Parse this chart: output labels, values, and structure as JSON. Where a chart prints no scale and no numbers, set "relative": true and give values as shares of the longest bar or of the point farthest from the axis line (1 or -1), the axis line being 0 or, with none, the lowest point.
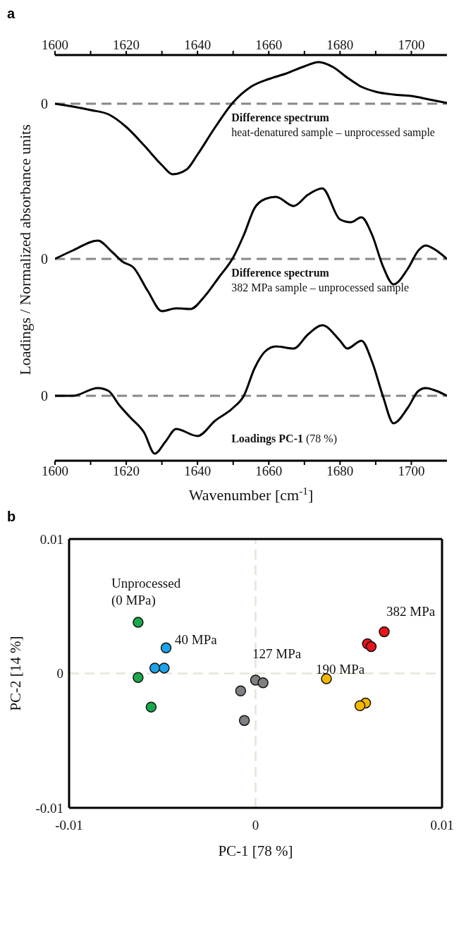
{
  "chart_data": [
    {
      "type": "line",
      "title": "a",
      "relative": true,
      "xlim": [
        1600,
        1710
      ],
      "xticks": [
        1600,
        {
          "value": 1610,
          "label": null
        },
        1620,
        {
          "value": 1630,
          "label": null
        },
        1640,
        {
          "value": 1650,
          "label": null
        },
        1660,
        {
          "value": 1670,
          "label": null
        },
        1680,
        {
          "value": 1690,
          "label": null
        },
        1700
      ],
      "x": [
        1600,
        1605,
        1610,
        1615,
        1620,
        1625,
        1630,
        1633,
        1637,
        1640,
        1645,
        1650,
        1655,
        1660,
        1665,
        1670,
        1674,
        1678,
        1682,
        1686,
        1690,
        1695,
        1700,
        1705,
        1710
      ],
      "series": [
        {
          "color": "#000000",
          "values": [
            0,
            -0.04,
            -0.09,
            -0.15,
            -0.33,
            -0.59,
            -0.87,
            -1,
            -0.93,
            -0.72,
            -0.33,
            0.02,
            0.24,
            0.35,
            0.43,
            0.53,
            0.59,
            0.52,
            0.37,
            0.24,
            0.17,
            0.13,
            0.11,
            0.06,
            0.01
          ]
        }
      ],
      "ref_lines": [
        {
          "axis": "y",
          "value": 0,
          "label": "0",
          "color": "#888888",
          "line_style": "dashed"
        }
      ],
      "annotations": [
        "Difference spectrum",
        "heat-denatured sample – unprocessed sample"
      ],
      "marker": "none",
      "line_style": "solid",
      "grid": false,
      "legend": false
    },
    {
      "type": "line",
      "relative": true,
      "ylabel": "Loadings / Normalized absorbance units",
      "xlim": [
        1600,
        1710
      ],
      "tick_labels": false,
      "x": [
        1600,
        1605,
        1612,
        1616,
        1619,
        1622,
        1626,
        1630,
        1634,
        1638,
        1642,
        1646,
        1650,
        1653,
        1656,
        1659,
        1662,
        1667,
        1671,
        1675,
        1680,
        1683,
        1686,
        1689,
        1692,
        1695,
        1699,
        1702,
        1704,
        1707,
        1710
      ],
      "series": [
        {
          "color": "#000000",
          "values": [
            0,
            0.12,
            0.26,
            0.1,
            -0.04,
            -0.12,
            -0.45,
            -0.74,
            -0.7,
            -0.71,
            -0.53,
            -0.26,
            0.02,
            0.34,
            0.72,
            0.85,
            0.88,
            0.75,
            0.91,
            1,
            0.56,
            0.52,
            0.59,
            0.34,
            -0.1,
            -0.36,
            -0.14,
            0.12,
            0.19,
            0.12,
            0
          ]
        }
      ],
      "ref_lines": [
        {
          "axis": "y",
          "value": 0,
          "label": "0",
          "color": "#888888",
          "line_style": "dashed"
        }
      ],
      "annotations": [
        "Difference spectrum",
        "382 MPa sample – unprocessed sample"
      ],
      "marker": "none",
      "line_style": "solid",
      "grid": false,
      "legend": false
    },
    {
      "type": "line",
      "relative": true,
      "xlabel": "Wavenumber [cm$^{-1}$]",
      "xlim": [
        1600,
        1710
      ],
      "xticks": [
        1600,
        {
          "value": 1610,
          "label": null
        },
        1620,
        {
          "value": 1630,
          "label": null
        },
        1640,
        {
          "value": 1650,
          "label": null
        },
        1660,
        {
          "value": 1670,
          "label": null
        },
        1680,
        {
          "value": 1690,
          "label": null
        },
        1700
      ],
      "tick_labels": "x",
      "x": [
        1600,
        1605,
        1612,
        1615,
        1618,
        1621,
        1625,
        1628,
        1631,
        1634,
        1640,
        1645,
        1650,
        1653,
        1656,
        1659,
        1662,
        1667,
        1671,
        1675,
        1680,
        1682,
        1686,
        1689,
        1692,
        1695,
        1699,
        1702,
        1704,
        1707,
        1710
      ],
      "series": [
        {
          "color": "#000000",
          "values": [
            0,
            0,
            0.11,
            0.07,
            -0.13,
            -0.3,
            -0.52,
            -0.82,
            -0.65,
            -0.47,
            -0.57,
            -0.35,
            -0.17,
            0,
            0.39,
            0.63,
            0.7,
            0.67,
            0.87,
            1,
            0.78,
            0.67,
            0.78,
            0.48,
            0,
            -0.39,
            -0.17,
            0.07,
            0.11,
            0.07,
            0
          ]
        }
      ],
      "ref_lines": [
        {
          "axis": "y",
          "value": 0,
          "label": "0",
          "color": "#888888",
          "line_style": "dashed"
        }
      ],
      "annotations": [
        "Loadings PC-1",
        "(78 %)"
      ],
      "marker": "none",
      "line_style": "solid",
      "grid": false,
      "legend": false
    },
    {
      "type": "scatter",
      "title": "b",
      "xlabel": "PC-1 [78 %]",
      "ylabel": "PC-2 [14 %]",
      "xlim": [
        -0.01,
        0.01
      ],
      "ylim": [
        -0.01,
        0.01
      ],
      "xticks": [
        -0.01,
        0,
        0.01
      ],
      "yticks": [
        -0.01,
        0,
        0.01
      ],
      "series": [
        {
          "color": "#1aa84b",
          "x": [
            -0.0063,
            -0.0063,
            -0.0056
          ],
          "values": [
            0.0038,
            -0.0003,
            -0.0025
          ]
        },
        {
          "color": "#1aa3e8",
          "x": [
            -0.0048,
            -0.0054,
            -0.0049
          ],
          "values": [
            0.0019,
            0.0004,
            0.0004
          ]
        },
        {
          "color": "#808080",
          "x": [
            0,
            0.0004,
            -0.0008,
            -0.0006
          ],
          "values": [
            -0.0005,
            -0.0007,
            -0.0013,
            -0.0035
          ]
        },
        {
          "color": "#f5b800",
          "x": [
            0.0038,
            0.0059,
            0.0056
          ],
          "values": [
            -0.0004,
            -0.0022,
            -0.0024
          ]
        },
        {
          "color": "#e8141a",
          "x": [
            0.0069,
            0.006,
            0.0062
          ],
          "values": [
            0.0031,
            0.0022,
            0.002
          ]
        }
      ],
      "ref_lines": [
        {
          "axis": "x",
          "value": 0,
          "color": "#e6e6d8",
          "line_style": "dashed"
        },
        {
          "axis": "y",
          "value": 0,
          "color": "#e6e6d8",
          "line_style": "dashed"
        }
      ],
      "annotations": [
        "Unprocessed (0 MPa)",
        "40 MPa",
        "127 MPa",
        "190 MPa",
        "382 MPa"
      ],
      "marker": "circle",
      "grid": false,
      "legend": false
    }
  ]
}
